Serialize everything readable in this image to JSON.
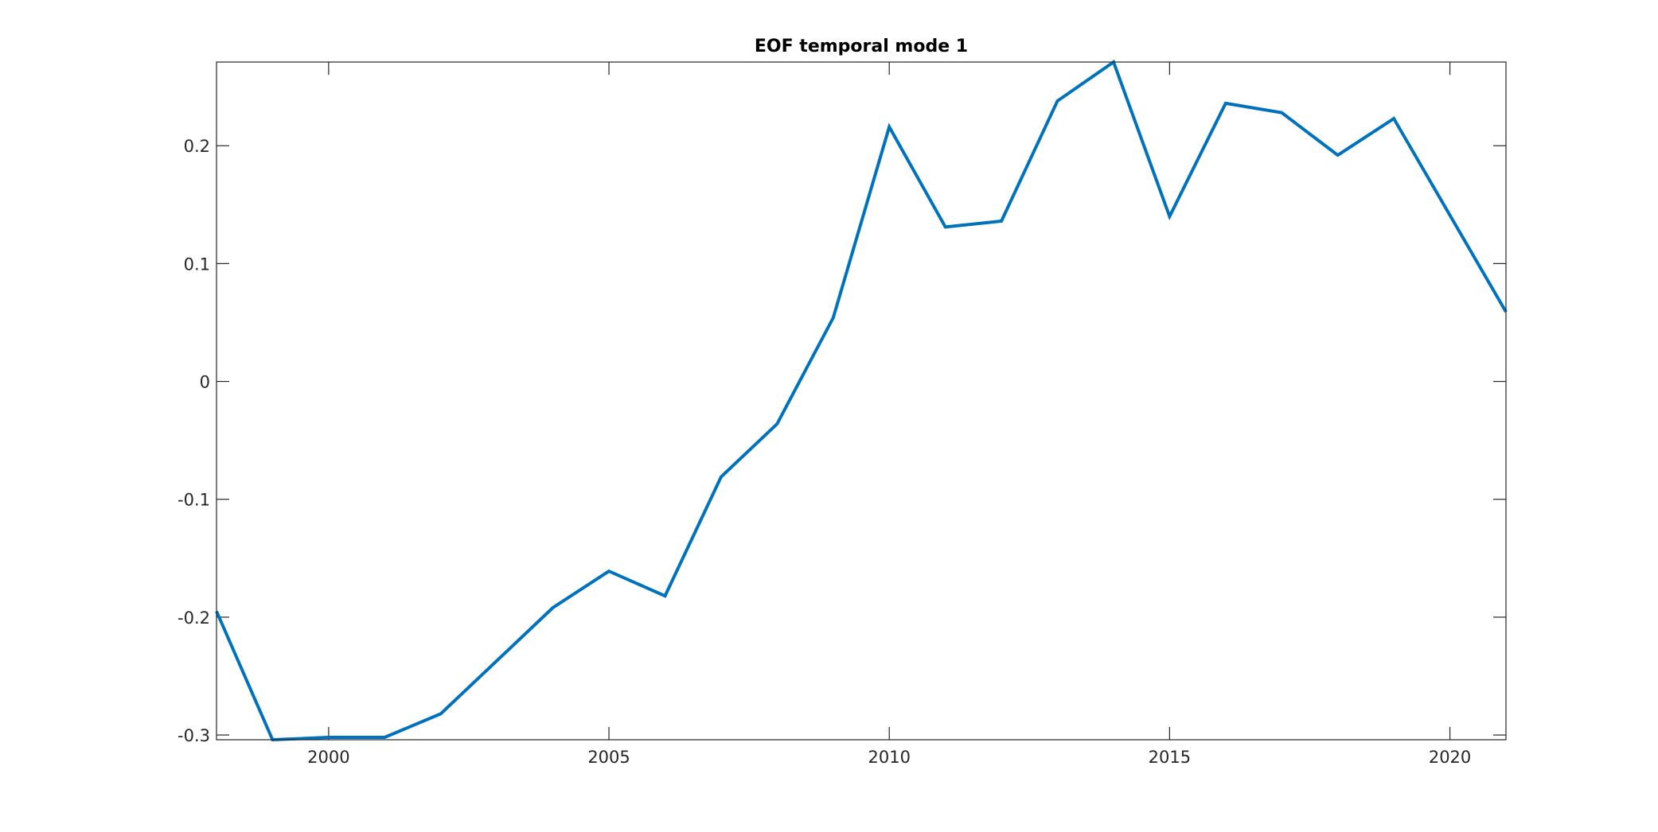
{
  "chart_data": {
    "type": "line",
    "title": "EOF temporal mode 1",
    "xlabel": "",
    "ylabel": "",
    "x": [
      1998,
      1999,
      2000,
      2001,
      2002,
      2003,
      2004,
      2005,
      2006,
      2007,
      2008,
      2009,
      2010,
      2011,
      2012,
      2013,
      2014,
      2015,
      2016,
      2017,
      2018,
      2019,
      2020,
      2021
    ],
    "series": [
      {
        "values": [
          -0.195,
          -0.304,
          -0.302,
          -0.302,
          -0.282,
          -0.237,
          -0.192,
          -0.161,
          -0.182,
          -0.081,
          -0.036,
          0.054,
          0.216,
          0.131,
          0.136,
          0.238,
          0.271,
          0.14,
          0.236,
          0.228,
          0.192,
          0.223,
          0.141,
          0.059
        ],
        "color": "#0072BD"
      }
    ],
    "xlim": [
      1998,
      2021
    ],
    "ylim": [
      -0.304,
      0.271
    ],
    "xticks": [
      2000,
      2005,
      2010,
      2015,
      2020
    ],
    "xtick_labels": [
      "2000",
      "2005",
      "2010",
      "2015",
      "2020"
    ],
    "yticks": [
      -0.3,
      -0.2,
      -0.1,
      0,
      0.1,
      0.2
    ],
    "ytick_labels": [
      "-0.3",
      "-0.2",
      "-0.1",
      "0",
      "0.1",
      "0.2"
    ],
    "grid": false,
    "legend": "none",
    "axes_color": "#262626",
    "background": "#ffffff"
  }
}
